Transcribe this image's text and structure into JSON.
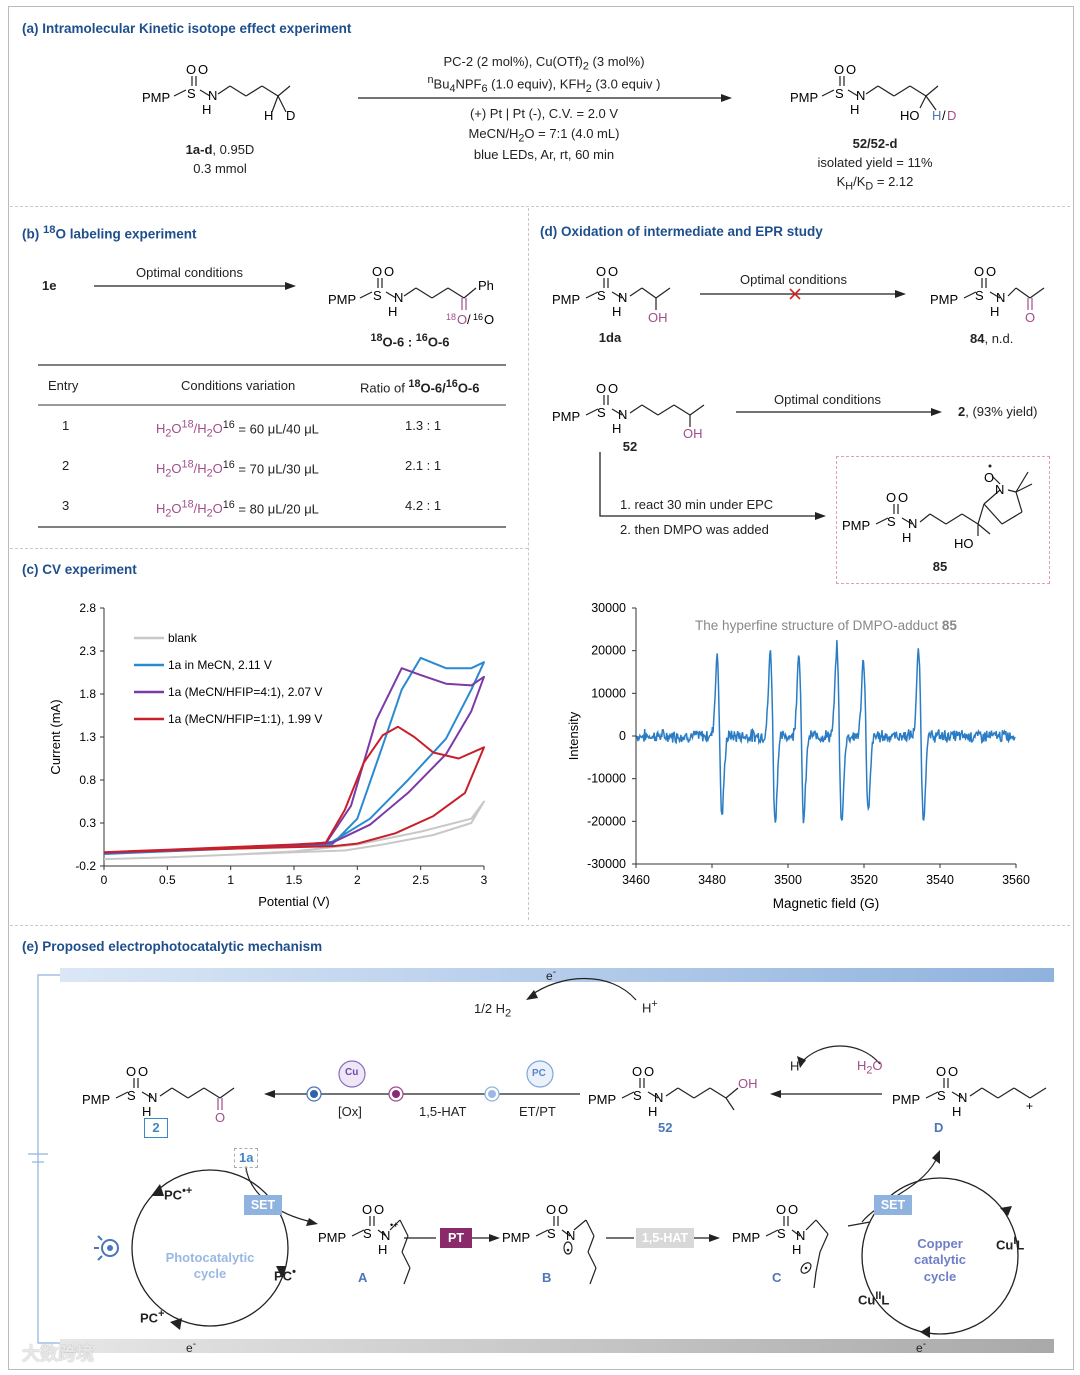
{
  "panel_a": {
    "title": "(a) Intramolecular Kinetic isotope effect experiment",
    "reactant_label": "1a-d",
    "reactant_d": ", 0.95D",
    "reactant_amount": "0.3 mmol",
    "cond1": "PC-2 (2 mol%), Cu(OTf)",
    "cond1_sub": "2",
    "cond1_end": " (3 mol%)",
    "cond2_sup": "n",
    "cond2_a": "Bu",
    "cond2_sub1": "4",
    "cond2_b": "NPF",
    "cond2_sub2": "6",
    "cond2_c": " (1.0 equiv), KFH",
    "cond2_sub3": "2",
    "cond2_d": " (3.0 equiv )",
    "cond3": "(+) Pt | Pt (-),  C.V. = 2.0 V",
    "cond4_a": "MeCN/H",
    "cond4_sub": "2",
    "cond4_b": "O = 7:1 (4.0 mL)",
    "cond5": "blue LEDs, Ar, rt, 60 min",
    "product_label": "52/52-d",
    "yield": "isolated yield = 11%",
    "kie_a": "K",
    "kie_sub1": "H",
    "kie_b": "/K",
    "kie_sub2": "D",
    "kie_c": " = 2.12"
  },
  "panel_b": {
    "title_a": "(b) ",
    "title_sup": "18",
    "title_b": "O labeling experiment",
    "reactant": "1e",
    "arrow_label": "Optimal conditions",
    "product_sup1": "18",
    "product_a": "O-6 : ",
    "product_sup2": "16",
    "product_b": "O-6",
    "headers": [
      "Entry",
      "Conditions variation",
      "Ratio of "
    ],
    "header_ratio_sup1": "18",
    "header_ratio_a": "O-6/",
    "header_ratio_sup2": "16",
    "header_ratio_b": "O-6",
    "rows": [
      {
        "entry": "1",
        "v1": "60",
        "v2": "40",
        "ratio": "1.3 : 1"
      },
      {
        "entry": "2",
        "v1": "70",
        "v2": "30",
        "ratio": "2.1 : 1"
      },
      {
        "entry": "3",
        "v1": "80",
        "v2": "20",
        "ratio": "4.2 : 1"
      }
    ],
    "cond_h2o": "H",
    "cond_sub": "2",
    "cond_o": "O",
    "cond_sup18": "18",
    "cond_sup16": "16",
    "cond_unit": "μL"
  },
  "panel_c": {
    "title": "(c) CV experiment"
  },
  "panel_d": {
    "title": "(d) Oxidation of intermediate and EPR study",
    "r1_label": "1da",
    "arrow1": "Optimal conditions",
    "p1_label": "84",
    "p1_note": ", n.d.",
    "r2_label": "52",
    "arrow2": "Optimal conditions",
    "p2_label": "2",
    "p2_note": ", (93% yield)",
    "step1": "1. react 30 min under EPC",
    "step2": "2. then DMPO was added",
    "adduct_label": "85"
  },
  "panel_e": {
    "title": "(e) Proposed electrophotocatalytic mechanism",
    "e_minus": "e",
    "half_h2_a": "1/2 H",
    "half_h2_sub": "2",
    "h_plus": "H",
    "h2o_a": "H",
    "h2o_sub": "2",
    "h2o_b": "O",
    "ox": "[Ox]",
    "hat": "1,5-HAT",
    "etpt": "ET/PT",
    "cu_badge": "Cu",
    "pc_badge": "PC",
    "label_2": "2",
    "label_52": "52",
    "label_D": "D",
    "label_1a": "1a",
    "set": "SET",
    "pt": "PT",
    "hat_badge": "1,5-HAT",
    "pc_rad_cat": "PC",
    "pc_rad": "PC",
    "pc_plus": "PC",
    "photo_cycle_1": "Photocatalytic",
    "photo_cycle_2": "cycle",
    "copper_cycle_1": "Copper",
    "copper_cycle_2": "catalytic",
    "copper_cycle_3": "cycle",
    "cu1": "Cu",
    "cu1_sup": "I",
    "cu1_L": "L",
    "cu2": "Cu",
    "cu2_sup": "II",
    "cu2_L": "L",
    "label_A": "A",
    "label_B": "B",
    "label_C": "C",
    "watermark": "大数跨境"
  },
  "chem": {
    "pmp": "PMP",
    "s": "S",
    "n": "N",
    "h": "H",
    "o": "O",
    "oh": "OH",
    "ho": "HO",
    "d": "D",
    "ph": "Ph",
    "hd_h": "H",
    "hd_slash": "/",
    "hd_d": "D"
  },
  "chart_data": [
    {
      "type": "line",
      "title": "",
      "xlabel": "Potential (V)",
      "ylabel": "Current (mA)",
      "xlim": [
        0,
        3
      ],
      "ylim": [
        -0.2,
        2.8
      ],
      "xticks": [
        "0",
        "0.5",
        "1",
        "1.5",
        "2",
        "2.5",
        "3"
      ],
      "yticks": [
        "2.8",
        "2.3",
        "1.8",
        "1.3",
        "0.8",
        "0.3",
        "-0.2"
      ],
      "series": [
        {
          "name": "blank",
          "color": "#c8c8c8",
          "x": [
            0,
            0.5,
            1,
            1.5,
            1.9,
            2.2,
            2.6,
            2.9,
            3,
            2.9,
            2.5,
            2,
            1.5,
            1,
            0.5,
            0
          ],
          "y": [
            -0.12,
            -0.1,
            -0.07,
            -0.04,
            -0.02,
            0.05,
            0.16,
            0.3,
            0.55,
            0.35,
            0.2,
            0.05,
            -0.03,
            -0.07,
            -0.1,
            -0.12
          ]
        },
        {
          "name": "1a in MeCN, 2.11 V",
          "color": "#2a8ad0",
          "x": [
            0,
            0.5,
            1,
            1.5,
            1.8,
            2,
            2.2,
            2.35,
            2.5,
            2.7,
            2.9,
            3,
            2.9,
            2.7,
            2.4,
            2.1,
            1.8,
            1.5,
            1,
            0.5,
            0
          ],
          "y": [
            -0.06,
            -0.03,
            0,
            0.03,
            0.05,
            0.35,
            1.2,
            1.85,
            2.22,
            2.1,
            2.1,
            2.17,
            1.85,
            1.28,
            0.8,
            0.35,
            0.08,
            0.04,
            0.01,
            -0.02,
            -0.05
          ]
        },
        {
          "name": "1a (MeCN/HFIP=4:1), 2.07 V",
          "color": "#7d3aa6",
          "x": [
            0,
            0.5,
            1,
            1.5,
            1.75,
            1.95,
            2.15,
            2.35,
            2.5,
            2.7,
            2.9,
            3,
            2.9,
            2.7,
            2.4,
            2.1,
            1.8,
            1.5,
            1,
            0.5,
            0
          ],
          "y": [
            -0.05,
            -0.02,
            0.01,
            0.04,
            0.06,
            0.5,
            1.5,
            2.1,
            2.02,
            1.92,
            1.9,
            2.0,
            1.6,
            1.1,
            0.65,
            0.28,
            0.07,
            0.04,
            0.01,
            -0.02,
            -0.05
          ]
        },
        {
          "name": "1a (MeCN/HFIP=1:1), 1.99 V",
          "color": "#c8202a",
          "x": [
            0,
            0.5,
            1,
            1.5,
            1.75,
            1.9,
            2.05,
            2.2,
            2.32,
            2.45,
            2.6,
            2.8,
            3,
            2.85,
            2.6,
            2.3,
            2,
            1.8,
            1.5,
            1,
            0.5,
            0
          ],
          "y": [
            -0.04,
            -0.01,
            0.02,
            0.05,
            0.07,
            0.45,
            1.0,
            1.32,
            1.42,
            1.3,
            1.12,
            1.05,
            1.18,
            0.65,
            0.38,
            0.18,
            0.06,
            0.03,
            0.02,
            0,
            -0.02,
            -0.04
          ]
        }
      ]
    },
    {
      "type": "line",
      "title": "The hyperfine structure of DMPO-adduct ",
      "title_bold": "85",
      "xlabel": "Magnetic field  (G)",
      "ylabel": "Intensity",
      "xlim": [
        3460,
        3560
      ],
      "ylim": [
        -30000,
        30000
      ],
      "xticks": [
        "3460",
        "3480",
        "3500",
        "3520",
        "3540",
        "3560"
      ],
      "yticks": [
        "30000",
        "20000",
        "10000",
        "0",
        "-10000",
        "-20000",
        "-30000"
      ],
      "series": [
        {
          "name": "DMPO adduct 85",
          "color": "#2a7cc4",
          "lines": [
            {
              "pos": 3482,
              "amp": 20000
            },
            {
              "pos": 3496,
              "amp": 21000
            },
            {
              "pos": 3503.5,
              "amp": 21000
            },
            {
              "pos": 3513.5,
              "amp": 22000
            },
            {
              "pos": 3520.5,
              "amp": 19000
            },
            {
              "pos": 3535,
              "amp": 21000
            }
          ],
          "width": 0.9,
          "noise": 1200
        }
      ]
    }
  ]
}
